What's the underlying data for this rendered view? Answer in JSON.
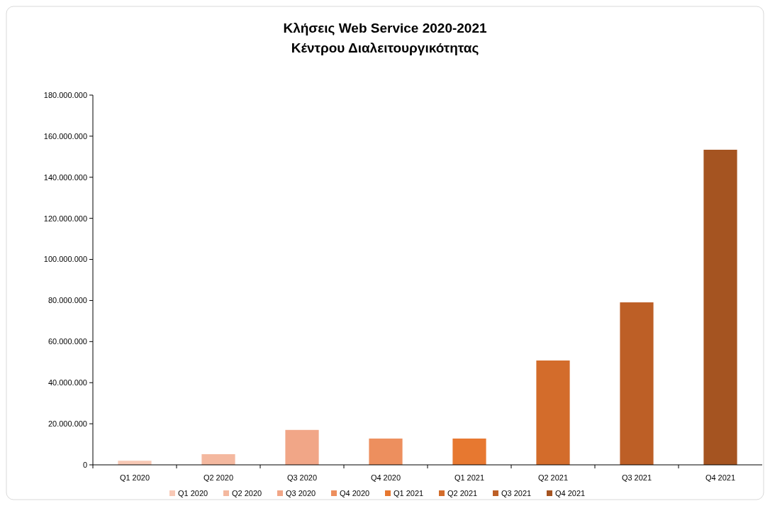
{
  "chart_data": {
    "type": "bar",
    "title": "Κλήσεις Web Service 2020-2021",
    "subtitle": "Κέντρου Διαλειτουργικότητας",
    "categories": [
      "Q1 2020",
      "Q2 2020",
      "Q3 2020",
      "Q4 2020",
      "Q1 2021",
      "Q2 2021",
      "Q3 2021",
      "Q4 2021"
    ],
    "series": [
      {
        "name": "Q1 2020",
        "color": "#f8c9b6",
        "values": [
          2000000,
          null,
          null,
          null,
          null,
          null,
          null,
          null
        ]
      },
      {
        "name": "Q2 2020",
        "color": "#f4b89f",
        "values": [
          null,
          5200000,
          null,
          null,
          null,
          null,
          null,
          null
        ]
      },
      {
        "name": "Q3 2020",
        "color": "#f1a687",
        "values": [
          null,
          null,
          17000000,
          null,
          null,
          null,
          null,
          null
        ]
      },
      {
        "name": "Q4 2020",
        "color": "#ed8f5e",
        "values": [
          null,
          null,
          null,
          12800000,
          null,
          null,
          null,
          null
        ]
      },
      {
        "name": "Q1 2021",
        "color": "#e77830",
        "values": [
          null,
          null,
          null,
          null,
          12800000,
          null,
          null,
          null
        ]
      },
      {
        "name": "Q2 2021",
        "color": "#d36c2b",
        "values": [
          null,
          null,
          null,
          null,
          null,
          50800000,
          null,
          null
        ]
      },
      {
        "name": "Q3 2021",
        "color": "#bd5f26",
        "values": [
          null,
          null,
          null,
          null,
          null,
          null,
          79100000,
          null
        ]
      },
      {
        "name": "Q4 2021",
        "color": "#a55421",
        "values": [
          null,
          null,
          null,
          null,
          null,
          null,
          null,
          153400000
        ]
      }
    ],
    "ylim": [
      0,
      180000000
    ],
    "yticks": [
      0,
      {
        "value": 20000000,
        "label": "20.000.000"
      },
      {
        "value": 40000000,
        "label": "40.000.000"
      },
      {
        "value": 60000000,
        "label": "60.000.000"
      },
      {
        "value": 80000000,
        "label": "80.000.000"
      },
      {
        "value": 100000000,
        "label": "100.000.000"
      },
      {
        "value": 120000000,
        "label": "120.000.000"
      },
      {
        "value": 140000000,
        "label": "140.000.000"
      },
      {
        "value": 160000000,
        "label": "160.000.000"
      },
      {
        "value": 180000000,
        "label": "180.000.000"
      }
    ],
    "legend": "bottom"
  }
}
